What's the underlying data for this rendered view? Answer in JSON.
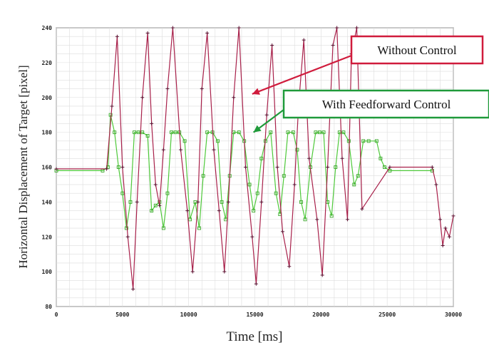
{
  "chart_data": {
    "type": "line",
    "title": "",
    "xlabel": "Time [ms]",
    "ylabel": "Horizontal Displacement of Target [pixel]",
    "xlim": [
      0,
      30000
    ],
    "ylim": [
      80,
      240
    ],
    "x_ticks": [
      0,
      5000,
      10000,
      15000,
      20000,
      25000,
      30000
    ],
    "y_ticks": [
      80,
      100,
      120,
      140,
      160,
      180,
      200,
      220,
      240
    ],
    "grid": true,
    "series": [
      {
        "name": "Without Control",
        "color": "#a8204a",
        "marker": "plus",
        "x": [
          0,
          3800,
          4200,
          4600,
          5000,
          5400,
          5800,
          6100,
          6500,
          6900,
          7200,
          7500,
          7800,
          8100,
          8400,
          8800,
          9400,
          9900,
          10300,
          10700,
          11000,
          11400,
          11900,
          12300,
          12700,
          13000,
          13400,
          13800,
          14300,
          14800,
          15100,
          15500,
          15900,
          16300,
          16700,
          17100,
          17600,
          18000,
          18300,
          18700,
          19100,
          19700,
          20100,
          20500,
          20900,
          21200,
          21600,
          22000,
          22300,
          22700,
          23100,
          25200,
          28400,
          28700,
          29000,
          29200,
          29400,
          29700,
          30000
        ],
        "y": [
          159,
          159,
          195,
          235,
          160,
          120,
          90,
          140,
          200,
          237,
          185,
          150,
          138,
          170,
          205,
          240,
          170,
          135,
          100,
          140,
          205,
          237,
          170,
          135,
          100,
          140,
          200,
          240,
          160,
          120,
          93,
          140,
          190,
          230,
          160,
          123,
          103,
          150,
          195,
          233,
          165,
          130,
          98,
          160,
          230,
          240,
          165,
          130,
          225,
          240,
          136,
          160,
          160,
          150,
          130,
          115,
          125,
          120,
          132
        ]
      },
      {
        "name": "With Feedforward Control",
        "color": "#4ec93a",
        "marker": "square",
        "x": [
          0,
          3500,
          3900,
          4100,
          4400,
          4700,
          5000,
          5300,
          5600,
          5900,
          6200,
          6500,
          6900,
          7200,
          7500,
          7800,
          8100,
          8400,
          8700,
          9000,
          9300,
          9700,
          10100,
          10500,
          10800,
          11100,
          11400,
          11800,
          12200,
          12500,
          12800,
          13100,
          13400,
          13800,
          14200,
          14600,
          14900,
          15200,
          15500,
          15800,
          16200,
          16600,
          16900,
          17200,
          17500,
          17900,
          18200,
          18500,
          18800,
          19200,
          19600,
          19900,
          20200,
          20500,
          20800,
          21100,
          21400,
          21700,
          22100,
          22500,
          22800,
          23200,
          23600,
          24200,
          24500,
          24800,
          25200,
          28400
        ],
        "y": [
          158,
          158,
          160,
          190,
          180,
          160,
          145,
          125,
          140,
          180,
          180,
          180,
          178,
          135,
          138,
          140,
          125,
          145,
          180,
          180,
          180,
          175,
          130,
          140,
          125,
          155,
          180,
          180,
          175,
          140,
          130,
          155,
          180,
          180,
          175,
          150,
          135,
          145,
          165,
          175,
          180,
          145,
          133,
          155,
          180,
          180,
          170,
          140,
          130,
          160,
          180,
          180,
          180,
          140,
          132,
          160,
          180,
          180,
          175,
          150,
          155,
          175,
          175,
          175,
          165,
          160,
          158,
          158
        ]
      }
    ],
    "annotations": [
      {
        "text": "Without Control",
        "border": "#d01b3c",
        "arrow_color": "#d01b3c",
        "arrow_to": [
          14800,
          202
        ]
      },
      {
        "text": "With Feedforward Control",
        "border": "#1f9a3a",
        "arrow_color": "#1f9a3a",
        "arrow_to": [
          14900,
          180
        ]
      }
    ]
  }
}
